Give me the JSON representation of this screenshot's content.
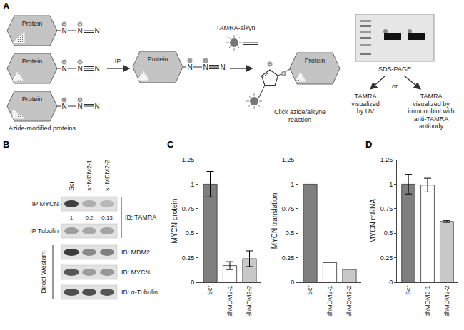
{
  "panel_labels": [
    "A",
    "B",
    "C",
    "D"
  ],
  "diagram": {
    "protein_label": "Protein",
    "azide": {
      "atoms": [
        "N",
        "N",
        "N"
      ],
      "charges": [
        "−",
        "+"
      ]
    },
    "caption_left": "Azide-modified proteins",
    "ip_label": "IP",
    "reagent": "TAMRA-alkyn",
    "caption_click": "Click azide/alkyne reaction",
    "gel_label": "SDS-PAGE",
    "or_label": "or",
    "readout_uv": "TAMRA visualized by UV",
    "readout_ib": "TAMRA visualized by immunoblot with anti-TAMRA antibody"
  },
  "blot": {
    "lanes": [
      "Scr",
      "shMDM2-1",
      "shMDM2-2"
    ],
    "ip_rows": [
      "IP MYCN",
      "IP Tubulin"
    ],
    "quantification": [
      1,
      0.2,
      0.13
    ],
    "ip_readout": "IB: TAMRA",
    "direct_group": "Direct Western",
    "direct_rows": [
      "IB: MDM2",
      "IB: MYCN",
      "IB: α-Tubulin"
    ]
  },
  "chart_data": [
    {
      "type": "bar",
      "ylabel": "MYCN protein",
      "categories": [
        "Scr",
        "shMDM2-1",
        "shMDM2-2"
      ],
      "values": [
        1,
        0.17,
        0.24
      ],
      "errors": [
        0.13,
        0.04,
        0.08
      ],
      "colors": [
        "#7f7f7f",
        "#ffffff",
        "#c8c8c8"
      ],
      "ylim": [
        0,
        1.25
      ],
      "yticks": [
        0,
        0.25,
        0.5,
        0.75,
        1,
        1.25
      ]
    },
    {
      "type": "bar",
      "ylabel": "MYCN translation",
      "categories": [
        "Scr",
        "shMDM2-1",
        "shMDM2-2"
      ],
      "values": [
        1,
        0.2,
        0.13
      ],
      "colors": [
        "#7f7f7f",
        "#ffffff",
        "#c8c8c8"
      ],
      "ylim": [
        0,
        1.25
      ],
      "yticks": [
        0,
        0.25,
        0.5,
        0.75,
        1,
        1.25
      ]
    },
    {
      "type": "bar",
      "ylabel": "MYCN mRNA",
      "categories": [
        "Scr",
        "shMDM2-1",
        "shMDM2-2"
      ],
      "values": [
        1,
        0.99,
        0.62
      ],
      "errors": [
        0.1,
        0.07,
        0.01
      ],
      "colors": [
        "#7f7f7f",
        "#ffffff",
        "#c8c8c8"
      ],
      "ylim": [
        0,
        1.25
      ],
      "yticks": [
        0,
        0.25,
        0.5,
        0.75,
        1,
        1.25
      ]
    }
  ]
}
